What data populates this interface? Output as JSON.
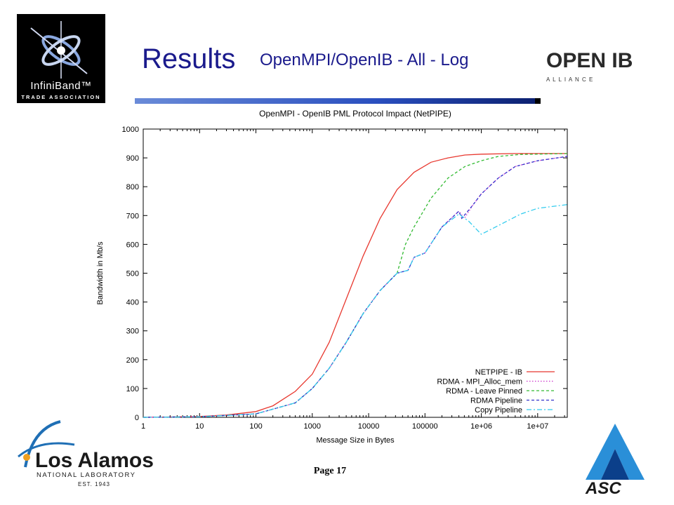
{
  "header": {
    "title": "Results",
    "subtitle": "OpenMPI/OpenIB - All - Log"
  },
  "logos": {
    "infiniband_name": "InfiniBand™",
    "infiniband_sub": "TRADE ASSOCIATION",
    "openib_word": "OPEN IB",
    "openib_sub": "A L L I A N C E",
    "lanl_name": "Los Alamos",
    "lanl_sub": "NATIONAL LABORATORY",
    "lanl_est": "EST. 1943",
    "asc": "ASC"
  },
  "footer": {
    "page": "Page 17"
  },
  "colors": {
    "title": "#1a1a8c",
    "netpipe": "#e8382f",
    "alloc_mem": "#cc33cc",
    "leave_pinned": "#33bb33",
    "rdma_pipeline": "#3333cc",
    "copy_pipeline": "#33ccee"
  },
  "chart_data": {
    "type": "line",
    "title": "OpenMPI - OpenIB PML Protocol Impact (NetPIPE)",
    "xlabel": "Message Size in Bytes",
    "ylabel": "Bandwidth in Mb/s",
    "x_scale": "log",
    "xlim": [
      1,
      33554432
    ],
    "ylim": [
      0,
      1000
    ],
    "x_ticks": [
      {
        "value": 1,
        "label": "1"
      },
      {
        "value": 10,
        "label": "10"
      },
      {
        "value": 100,
        "label": "100"
      },
      {
        "value": 1000,
        "label": "1000"
      },
      {
        "value": 10000,
        "label": "10000"
      },
      {
        "value": 100000,
        "label": "100000"
      },
      {
        "value": 1000000,
        "label": "1e+06"
      },
      {
        "value": 10000000,
        "label": "1e+07"
      }
    ],
    "y_ticks": [
      0,
      100,
      200,
      300,
      400,
      500,
      600,
      700,
      800,
      900,
      1000
    ],
    "grid": false,
    "legend_position": "bottom-right",
    "series": [
      {
        "name": "NETPIPE - IB",
        "style": "solid",
        "color": "#e8382f",
        "points": [
          [
            1,
            0
          ],
          [
            10,
            3
          ],
          [
            30,
            8
          ],
          [
            100,
            20
          ],
          [
            200,
            40
          ],
          [
            500,
            90
          ],
          [
            1000,
            150
          ],
          [
            2000,
            260
          ],
          [
            4000,
            410
          ],
          [
            8000,
            560
          ],
          [
            16000,
            690
          ],
          [
            32000,
            790
          ],
          [
            64000,
            850
          ],
          [
            128000,
            885
          ],
          [
            256000,
            900
          ],
          [
            512000,
            910
          ],
          [
            1000000,
            913
          ],
          [
            4000000,
            915
          ],
          [
            33554432,
            915
          ]
        ]
      },
      {
        "name": "RDMA - MPI_Alloc_mem",
        "style": "dotted",
        "color": "#cc33cc",
        "points": [
          [
            1,
            0
          ],
          [
            10,
            2
          ],
          [
            100,
            12
          ],
          [
            500,
            50
          ],
          [
            1000,
            100
          ],
          [
            2000,
            170
          ],
          [
            4000,
            260
          ],
          [
            8000,
            360
          ],
          [
            16000,
            440
          ],
          [
            32000,
            500
          ],
          [
            50000,
            510
          ],
          [
            64000,
            555
          ],
          [
            100000,
            570
          ],
          [
            200000,
            660
          ],
          [
            400000,
            715
          ],
          [
            500000,
            690
          ],
          [
            700000,
            735
          ],
          [
            1000000,
            775
          ],
          [
            2000000,
            830
          ],
          [
            4000000,
            870
          ],
          [
            10000000,
            890
          ],
          [
            33554432,
            905
          ]
        ]
      },
      {
        "name": "RDMA - Leave Pinned",
        "style": "dashed",
        "color": "#33bb33",
        "points": [
          [
            1,
            0
          ],
          [
            10,
            2
          ],
          [
            100,
            12
          ],
          [
            500,
            50
          ],
          [
            1000,
            100
          ],
          [
            2000,
            170
          ],
          [
            4000,
            260
          ],
          [
            8000,
            360
          ],
          [
            16000,
            440
          ],
          [
            32000,
            500
          ],
          [
            45000,
            600
          ],
          [
            64000,
            660
          ],
          [
            128000,
            760
          ],
          [
            256000,
            830
          ],
          [
            512000,
            870
          ],
          [
            1000000,
            890
          ],
          [
            2000000,
            905
          ],
          [
            5000000,
            912
          ],
          [
            33554432,
            915
          ]
        ]
      },
      {
        "name": "RDMA Pipeline",
        "style": "dashed",
        "color": "#3333cc",
        "points": [
          [
            1,
            0
          ],
          [
            10,
            2
          ],
          [
            100,
            12
          ],
          [
            500,
            50
          ],
          [
            1000,
            100
          ],
          [
            2000,
            170
          ],
          [
            4000,
            260
          ],
          [
            8000,
            360
          ],
          [
            16000,
            440
          ],
          [
            32000,
            500
          ],
          [
            50000,
            510
          ],
          [
            64000,
            555
          ],
          [
            100000,
            570
          ],
          [
            200000,
            660
          ],
          [
            400000,
            715
          ],
          [
            450000,
            690
          ],
          [
            700000,
            735
          ],
          [
            1000000,
            775
          ],
          [
            2000000,
            830
          ],
          [
            4000000,
            870
          ],
          [
            10000000,
            890
          ],
          [
            33554432,
            905
          ]
        ]
      },
      {
        "name": "Copy Pipeline",
        "style": "dashdot",
        "color": "#33ccee",
        "points": [
          [
            1,
            0
          ],
          [
            10,
            2
          ],
          [
            100,
            12
          ],
          [
            500,
            50
          ],
          [
            1000,
            100
          ],
          [
            2000,
            170
          ],
          [
            4000,
            260
          ],
          [
            8000,
            360
          ],
          [
            16000,
            440
          ],
          [
            32000,
            500
          ],
          [
            50000,
            510
          ],
          [
            64000,
            555
          ],
          [
            100000,
            570
          ],
          [
            200000,
            660
          ],
          [
            400000,
            705
          ],
          [
            600000,
            680
          ],
          [
            1000000,
            635
          ],
          [
            2000000,
            665
          ],
          [
            5000000,
            705
          ],
          [
            10000000,
            725
          ],
          [
            33554432,
            738
          ]
        ]
      }
    ]
  }
}
